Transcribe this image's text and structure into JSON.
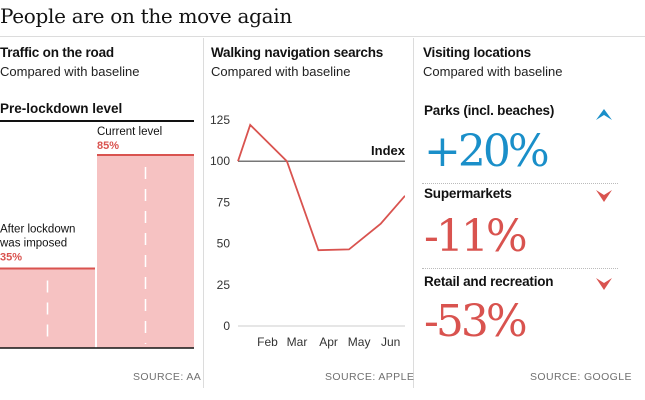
{
  "headline": "People are on the move again",
  "panels": {
    "traffic": {
      "title": "Traffic on the road",
      "subtitle": "Compared with baseline",
      "source": "SOURCE: AA",
      "reference_label": "Pre-lockdown level",
      "bars": [
        {
          "label_line1": "After lockdown",
          "label_line2": "was imposed",
          "value_label": "35%",
          "value": 35
        },
        {
          "label_line1": "Current level",
          "label_line2": "",
          "value_label": "85%",
          "value": 85
        }
      ]
    },
    "walking": {
      "title": "Walking navigation searchs",
      "subtitle": "Compared with baseline",
      "source": "SOURCE: APPLE",
      "index_label": "Index"
    },
    "visits": {
      "title": "Visiting locations",
      "subtitle": "Compared with baseline",
      "source": "SOURCE: GOOGLE",
      "items": [
        {
          "label": "Parks (incl. beaches)",
          "value": "+20%",
          "direction": "up",
          "color": "#1a8fc9",
          "icon": "up-arrow-icon"
        },
        {
          "label": "Supermarkets",
          "value": "-11%",
          "direction": "down",
          "color": "#d9534f",
          "icon": "down-arrow-icon"
        },
        {
          "label": "Retail and recreation",
          "value": "-53%",
          "direction": "down",
          "color": "#d9534f",
          "icon": "down-arrow-icon"
        }
      ]
    }
  },
  "colors": {
    "bar_fill": "#f6c2c2",
    "bar_line": "#d9534f",
    "line": "#d9534f",
    "up": "#1a8fc9",
    "down": "#d9534f"
  },
  "chart_data": [
    {
      "type": "bar",
      "title": "Traffic on the road",
      "subtitle": "Compared with baseline",
      "categories": [
        "After lockdown was imposed",
        "Current level"
      ],
      "values": [
        35,
        85
      ],
      "ylim": [
        0,
        100
      ],
      "reference": {
        "label": "Pre-lockdown level",
        "value": 100
      }
    },
    {
      "type": "line",
      "title": "Walking navigation searchs",
      "subtitle": "Compared with baseline",
      "x_ticks": [
        "Feb",
        "Mar",
        "Apr",
        "May",
        "Jun"
      ],
      "y_ticks": [
        0,
        25,
        50,
        75,
        100,
        125
      ],
      "ylim": [
        0,
        125
      ],
      "reference": {
        "label": "Index",
        "value": 100
      },
      "points": [
        {
          "x": "Jan 13",
          "y": 100
        },
        {
          "x": "Jan 25",
          "y": 122
        },
        {
          "x": "Mar 1",
          "y": 100
        },
        {
          "x": "Apr 1",
          "y": 46
        },
        {
          "x": "May 1",
          "y": 46.5
        },
        {
          "x": "Jun 1",
          "y": 62
        },
        {
          "x": "Jun 25",
          "y": 79
        }
      ]
    }
  ]
}
